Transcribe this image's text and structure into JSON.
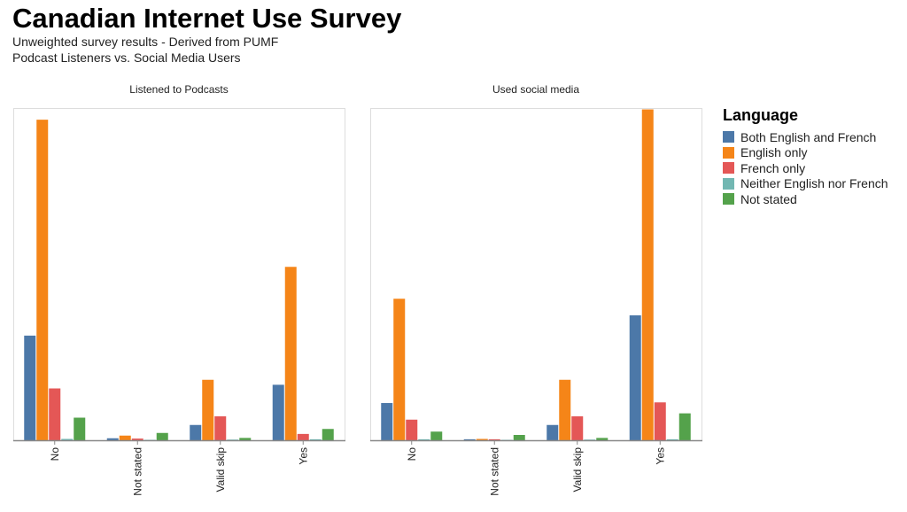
{
  "chart_data": {
    "type": "bar",
    "title": "Canadian Internet Use Survey",
    "subtitle": [
      "Unweighted survey results - Derived from PUMF",
      "Podcast Listeners vs. Social Media Users"
    ],
    "legend_title": "Language",
    "legend_position": "right",
    "categories": [
      "No",
      "Not stated",
      "Valid skip",
      "Yes"
    ],
    "series": [
      {
        "name": "Both English and French",
        "color": "#4c78a8"
      },
      {
        "name": "English only",
        "color": "#f58518"
      },
      {
        "name": "French only",
        "color": "#e45756"
      },
      {
        "name": "Neither English nor French",
        "color": "#72b7b2"
      },
      {
        "name": "Not stated",
        "color": "#54a24b"
      }
    ],
    "ylim": [
      0,
      100
    ],
    "grid": false,
    "panels": [
      {
        "title": "Listened to Podcasts",
        "values": [
          [
            31.5,
            96.5,
            15.6,
            0.4,
            6.8
          ],
          [
            0.6,
            1.4,
            0.5,
            0.1,
            2.2
          ],
          [
            4.6,
            18.2,
            7.2,
            0.2,
            0.7
          ],
          [
            16.7,
            52.2,
            1.9,
            0.3,
            3.4
          ]
        ]
      },
      {
        "title": "Used social media",
        "values": [
          [
            11.2,
            42.6,
            6.2,
            0.3,
            2.6
          ],
          [
            0.3,
            0.4,
            0.3,
            0.1,
            1.6
          ],
          [
            4.6,
            18.2,
            7.2,
            0.2,
            0.7
          ],
          [
            37.6,
            99.6,
            11.4,
            0.3,
            8.1
          ]
        ]
      }
    ]
  }
}
